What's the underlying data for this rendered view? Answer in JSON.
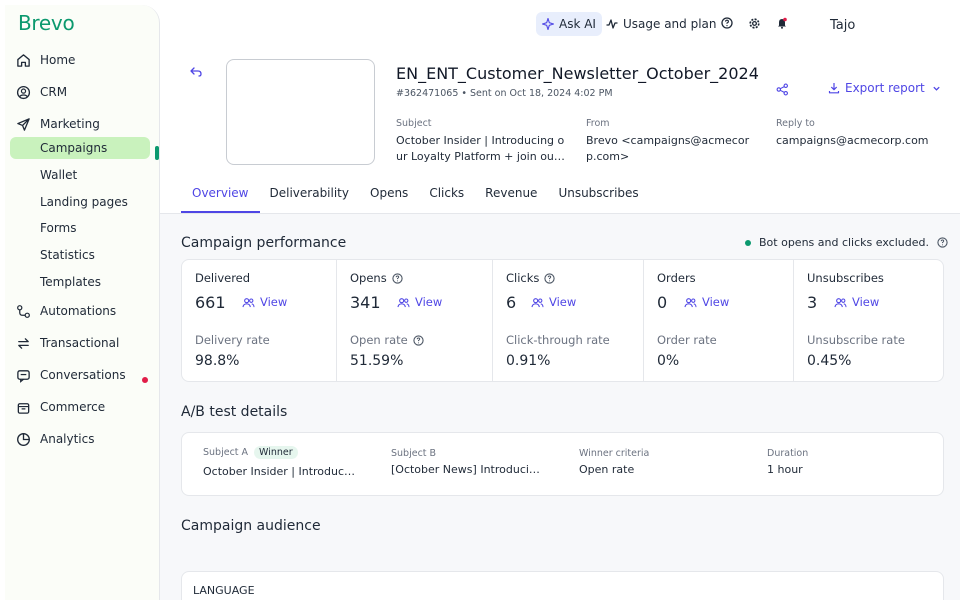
{
  "app": {
    "logo": "Brevo"
  },
  "sidebar": {
    "items": [
      {
        "label": "Home",
        "icon": "home-icon"
      },
      {
        "label": "CRM",
        "icon": "contact-icon"
      },
      {
        "label": "Marketing",
        "icon": "send-icon"
      },
      {
        "label": "Automations",
        "icon": "automation-icon"
      },
      {
        "label": "Transactional",
        "icon": "transactional-icon"
      },
      {
        "label": "Conversations",
        "icon": "chat-icon"
      },
      {
        "label": "Commerce",
        "icon": "bag-icon"
      },
      {
        "label": "Analytics",
        "icon": "chart-pie-icon"
      }
    ],
    "marketing_sub": [
      "Campaigns",
      "Wallet",
      "Landing pages",
      "Forms",
      "Statistics",
      "Templates"
    ],
    "active_sub": "Campaigns",
    "colors": {
      "accent": "#0b996e",
      "active_bg": "#c9f2bd",
      "notify_dot": "#e11d48"
    }
  },
  "topbar": {
    "ask_ai": "Ask AI",
    "usage": "Usage and plan",
    "user": "Tajo"
  },
  "campaign": {
    "title": "EN_ENT_Customer_Newsletter_October_2024",
    "meta": "#362471065 • Sent on Oct 18, 2024 4:02 PM",
    "export": "Export report",
    "subject_label": "Subject",
    "subject_line1": "October Insider | Introducing o",
    "subject_line2": "ur Loyalty Platform + join ou…",
    "from_label": "From",
    "from_line1": "Brevo <campaigns@acmecor",
    "from_line2": "p.com>",
    "reply_label": "Reply to",
    "reply_value": "campaigns@acmecorp.com"
  },
  "tabs": [
    "Overview",
    "Deliverability",
    "Opens",
    "Clicks",
    "Revenue",
    "Unsubscribes"
  ],
  "performance": {
    "title": "Campaign performance",
    "bot_note": "Bot opens and clicks excluded.",
    "view": "View",
    "metrics": [
      {
        "label": "Delivered",
        "value": "661",
        "rate_label": "Delivery rate",
        "rate": "98.8%"
      },
      {
        "label": "Opens",
        "value": "341",
        "rate_label": "Open rate",
        "rate": "51.59%"
      },
      {
        "label": "Clicks",
        "value": "6",
        "rate_label": "Click-through rate",
        "rate": "0.91%"
      },
      {
        "label": "Orders",
        "value": "0",
        "rate_label": "Order rate",
        "rate": "0%"
      },
      {
        "label": "Unsubscribes",
        "value": "3",
        "rate_label": "Unsubscribe rate",
        "rate": "0.45%"
      }
    ]
  },
  "ab_test": {
    "title": "A/B test details",
    "subject_a_label": "Subject A",
    "winner": "Winner",
    "subject_a": "October Insider | Introduc…",
    "subject_b_label": "Subject B",
    "subject_b": "[October News] Introduci…",
    "criteria_label": "Winner criteria",
    "criteria": "Open rate",
    "duration_label": "Duration",
    "duration": "1 hour"
  },
  "audience": {
    "title": "Campaign audience",
    "language_label": "LANGUAGE"
  }
}
